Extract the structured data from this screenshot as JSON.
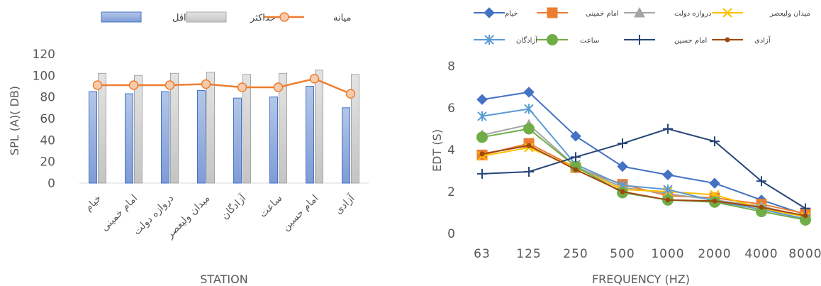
{
  "chart_data": [
    {
      "type": "bar",
      "xlabel": "STATION",
      "ylabel": "SPL (A)( DB)",
      "ylim": [
        0,
        120
      ],
      "yticks": [
        0,
        20,
        40,
        60,
        80,
        100,
        120
      ],
      "grid": false,
      "legend_position": "top",
      "categories": [
        "خیام",
        "امام خمینی",
        "دروازه دولت",
        "میدان ولیعصر",
        "آزادگان",
        "ساعت",
        "امام حسین",
        "آزادی"
      ],
      "series": [
        {
          "name": "حداقل",
          "kind": "bar",
          "color": "#7f9bd6",
          "values": [
            85,
            83,
            85,
            86,
            79,
            80,
            90,
            70
          ]
        },
        {
          "name": "حداکثر",
          "kind": "bar",
          "color": "#c9c9c9",
          "values": [
            102,
            100,
            102,
            103,
            101,
            102,
            105,
            101
          ]
        },
        {
          "name": "میانه",
          "kind": "line",
          "color": "#ed7d31",
          "values": [
            91,
            91,
            91,
            92,
            89,
            89,
            97,
            83
          ]
        }
      ]
    },
    {
      "type": "line",
      "xlabel": "FREQUENCY (HZ)",
      "ylabel": "EDT (S)",
      "ylim": [
        0,
        8
      ],
      "yticks": [
        0,
        2,
        4,
        6,
        8
      ],
      "grid": false,
      "legend_position": "top",
      "categories": [
        "63",
        "125",
        "250",
        "500",
        "1000",
        "2000",
        "4000",
        "8000"
      ],
      "series": [
        {
          "name": "خیام",
          "color": "#4472c4",
          "marker": "diamond",
          "values": [
            6.4,
            6.75,
            4.65,
            3.2,
            2.8,
            2.4,
            1.6,
            0.9
          ]
        },
        {
          "name": "امام خمینی",
          "color": "#ed7d31",
          "marker": "square",
          "values": [
            3.75,
            4.3,
            3.15,
            2.35,
            1.8,
            1.7,
            1.4,
            0.95
          ]
        },
        {
          "name": "دروازه دولت",
          "color": "#a5a5a5",
          "marker": "triangle",
          "values": [
            4.7,
            5.2,
            3.2,
            2.2,
            1.9,
            1.6,
            1.3,
            0.8
          ]
        },
        {
          "name": "میدان ولیعصر",
          "color": "#ffc000",
          "marker": "x",
          "values": [
            3.7,
            4.1,
            3.15,
            2.1,
            2.0,
            1.85,
            1.2,
            0.8
          ]
        },
        {
          "name": "آزادگان",
          "color": "#5b9bd5",
          "marker": "star",
          "values": [
            5.6,
            5.95,
            3.3,
            2.3,
            2.1,
            1.55,
            1.15,
            0.7
          ]
        },
        {
          "name": "ساعت",
          "color": "#70ad47",
          "marker": "circle",
          "values": [
            4.6,
            5.0,
            3.2,
            1.95,
            1.6,
            1.5,
            1.05,
            0.65
          ]
        },
        {
          "name": "امام حسین",
          "color": "#264478",
          "marker": "plus",
          "values": [
            2.85,
            2.95,
            3.65,
            4.3,
            5.0,
            4.4,
            2.5,
            1.2
          ]
        },
        {
          "name": "آزادی",
          "color": "#9e480e",
          "marker": "dot",
          "values": [
            3.8,
            4.2,
            3.05,
            2.0,
            1.6,
            1.55,
            1.25,
            0.85
          ]
        }
      ]
    }
  ]
}
